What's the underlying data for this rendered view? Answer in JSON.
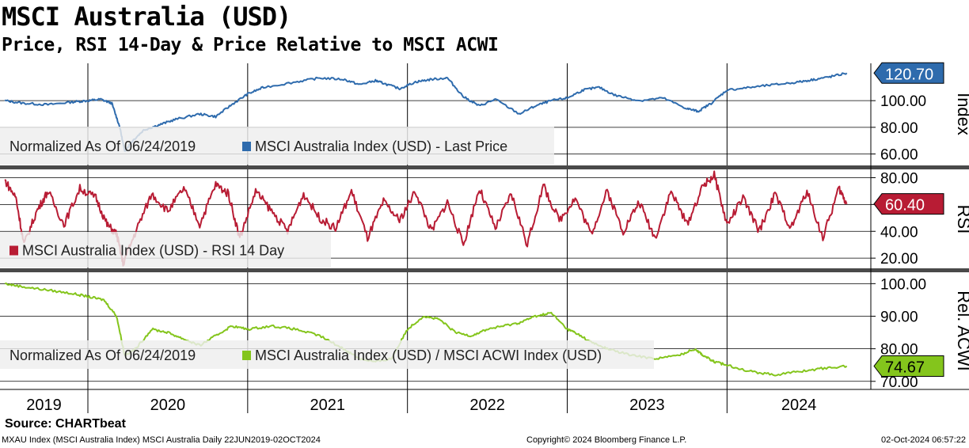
{
  "header": {
    "title": "MSCI Australia (USD)",
    "subtitle": "Price, RSI 14-Day & Price Relative to MSCI ACWI"
  },
  "footer": {
    "source": "Source: CHARTbeat",
    "left": "MXAU Index (MSCI Australia Index) MSCI Australia  Daily 22JUN2019-02OCT2024",
    "middle": "Copyright© 2024 Bloomberg Finance L.P.",
    "right": "02-Oct-2024 06:57:22"
  },
  "colors": {
    "price": "#2e6bad",
    "rsi": "#b81c34",
    "relative": "#84c51c",
    "grid": "#000000",
    "divider": "#4a4a4a",
    "legend_bg": "#eeeeee"
  },
  "chart_data": [
    {
      "type": "line",
      "panel": "price",
      "axis_label": "Index",
      "yticks": [
        "60.00",
        "80.00",
        "100.00"
      ],
      "ylim": [
        52,
        128
      ],
      "last_value_label": "120.70",
      "legend_note": "Normalized As Of 06/24/2019",
      "series": [
        {
          "name": "MSCI Australia Index (USD) - Last Price",
          "x": [
            2019.48,
            2019.6,
            2019.75,
            2019.9,
            2020.0,
            2020.08,
            2020.15,
            2020.2,
            2020.23,
            2020.28,
            2020.35,
            2020.45,
            2020.55,
            2020.7,
            2020.8,
            2020.9,
            2021.0,
            2021.1,
            2021.3,
            2021.45,
            2021.6,
            2021.7,
            2021.8,
            2021.85,
            2021.95,
            2022.05,
            2022.15,
            2022.25,
            2022.35,
            2022.45,
            2022.55,
            2022.7,
            2022.8,
            2022.9,
            2023.0,
            2023.1,
            2023.2,
            2023.3,
            2023.45,
            2023.6,
            2023.75,
            2023.82,
            2023.9,
            2024.0,
            2024.15,
            2024.3,
            2024.45,
            2024.55,
            2024.65,
            2024.75
          ],
          "y": [
            100,
            98,
            97,
            99,
            100,
            101,
            98,
            80,
            62,
            70,
            78,
            82,
            86,
            90,
            88,
            97,
            105,
            110,
            114,
            117,
            116,
            112,
            115,
            113,
            109,
            114,
            116,
            117,
            103,
            96,
            101,
            90,
            96,
            100,
            102,
            108,
            110,
            104,
            100,
            102,
            94,
            92,
            98,
            108,
            110,
            112,
            114,
            116,
            118,
            120.7
          ]
        }
      ]
    },
    {
      "type": "line",
      "panel": "rsi",
      "axis_label": "RSI",
      "yticks": [
        "20.00",
        "40.00",
        "60.00",
        "80.00"
      ],
      "ylim": [
        13,
        85
      ],
      "last_value_label": "60.40",
      "series": [
        {
          "name": "MSCI Australia Index (USD) - RSI 14 Day",
          "x": [
            2019.48,
            2019.55,
            2019.6,
            2019.68,
            2019.75,
            2019.85,
            2019.95,
            2020.05,
            2020.12,
            2020.18,
            2020.22,
            2020.3,
            2020.4,
            2020.5,
            2020.6,
            2020.7,
            2020.8,
            2020.88,
            2020.95,
            2021.05,
            2021.15,
            2021.25,
            2021.35,
            2021.45,
            2021.55,
            2021.65,
            2021.75,
            2021.85,
            2021.95,
            2022.05,
            2022.15,
            2022.25,
            2022.35,
            2022.45,
            2022.55,
            2022.65,
            2022.75,
            2022.85,
            2022.95,
            2023.05,
            2023.15,
            2023.25,
            2023.35,
            2023.45,
            2023.55,
            2023.65,
            2023.75,
            2023.85,
            2023.92,
            2024.0,
            2024.1,
            2024.2,
            2024.3,
            2024.4,
            2024.5,
            2024.6,
            2024.7,
            2024.75
          ],
          "y": [
            78,
            65,
            30,
            55,
            70,
            45,
            72,
            65,
            45,
            38,
            16,
            40,
            68,
            55,
            72,
            45,
            75,
            68,
            35,
            70,
            55,
            40,
            68,
            50,
            42,
            70,
            35,
            62,
            48,
            70,
            40,
            62,
            30,
            72,
            42,
            68,
            30,
            74,
            48,
            65,
            38,
            70,
            40,
            62,
            35,
            70,
            45,
            74,
            82,
            45,
            65,
            40,
            68,
            42,
            70,
            35,
            72,
            60.4
          ]
        }
      ]
    },
    {
      "type": "line",
      "panel": "relative",
      "axis_label": "Rel. ACWI",
      "yticks": [
        "70.00",
        "80.00",
        "90.00",
        "100.00"
      ],
      "ylim": [
        68,
        103
      ],
      "last_value_label": "74.67",
      "legend_note": "Normalized As Of 06/24/2019",
      "series": [
        {
          "name": "MSCI Australia Index (USD) / MSCI ACWI Index (USD)",
          "x": [
            2019.48,
            2019.6,
            2019.75,
            2019.9,
            2020.0,
            2020.1,
            2020.18,
            2020.23,
            2020.3,
            2020.4,
            2020.5,
            2020.6,
            2020.7,
            2020.8,
            2020.9,
            2021.0,
            2021.15,
            2021.3,
            2021.45,
            2021.6,
            2021.7,
            2021.8,
            2021.9,
            2022.0,
            2022.1,
            2022.2,
            2022.3,
            2022.4,
            2022.5,
            2022.6,
            2022.7,
            2022.8,
            2022.9,
            2023.0,
            2023.05,
            2023.15,
            2023.25,
            2023.4,
            2023.55,
            2023.7,
            2023.8,
            2023.85,
            2023.92,
            2024.0,
            2024.15,
            2024.3,
            2024.45,
            2024.6,
            2024.75
          ],
          "y": [
            100,
            99,
            98,
            97,
            96,
            95,
            90,
            78,
            80,
            86,
            85,
            83,
            81,
            84,
            87,
            86,
            87,
            86,
            84,
            80,
            77,
            76,
            77,
            86,
            90,
            89,
            85,
            84,
            86,
            87,
            88,
            90,
            91,
            86,
            85,
            82,
            80,
            78,
            77,
            78,
            80,
            78,
            76,
            75,
            73,
            72,
            73,
            74,
            74.67
          ]
        }
      ]
    }
  ],
  "x_axis": {
    "years": [
      "2019",
      "2020",
      "2021",
      "2022",
      "2023",
      "2024"
    ],
    "range": [
      2019.45,
      2024.9
    ]
  }
}
